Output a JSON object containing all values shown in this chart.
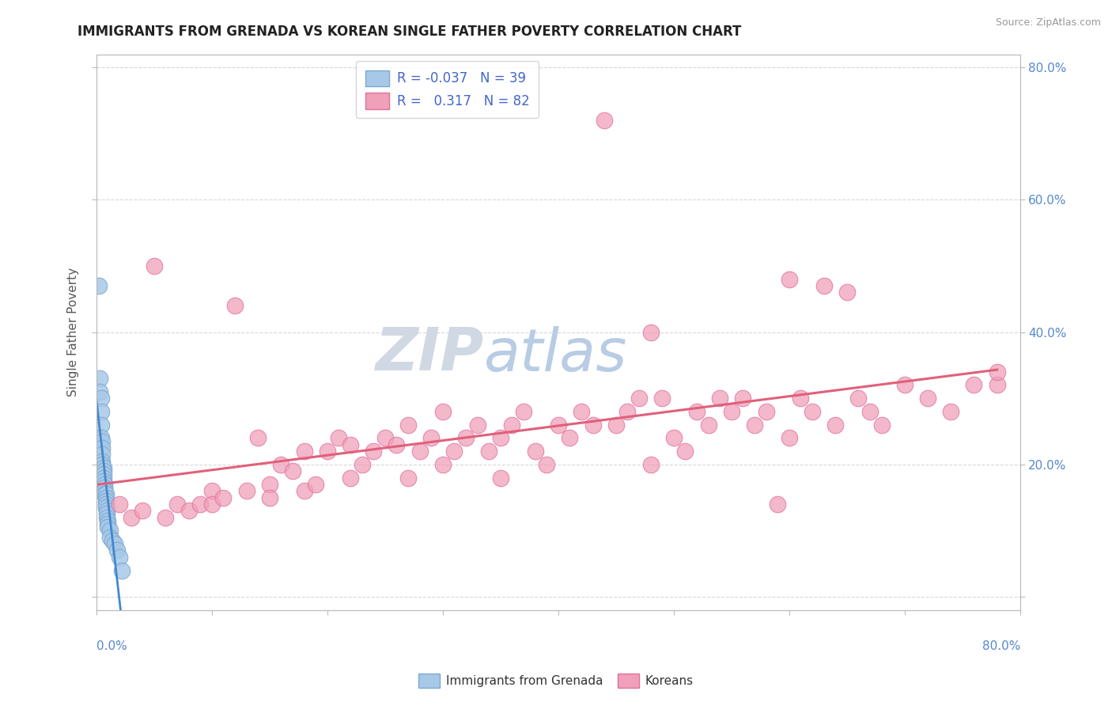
{
  "title": "IMMIGRANTS FROM GRENADA VS KOREAN SINGLE FATHER POVERTY CORRELATION CHART",
  "source": "Source: ZipAtlas.com",
  "ylabel": "Single Father Poverty",
  "right_yticks": [
    0.0,
    0.2,
    0.4,
    0.6,
    0.8
  ],
  "right_yticklabels": [
    "",
    "20.0%",
    "40.0%",
    "60.0%",
    "80.0%"
  ],
  "legend_blue_label": "Immigrants from Grenada",
  "legend_pink_label": "Koreans",
  "blue_color": "#a8c8e8",
  "pink_color": "#f0a0b8",
  "blue_edge_color": "#7aaad0",
  "pink_edge_color": "#e070a0",
  "blue_line_color": "#4488cc",
  "pink_line_color": "#e0607a",
  "title_color": "#222222",
  "source_color": "#999999",
  "axis_label_color": "#555555",
  "legend_r_color": "#4466cc",
  "background_color": "#ffffff",
  "grid_color": "#d8d8d8",
  "xlim": [
    0.0,
    0.8
  ],
  "ylim": [
    -0.02,
    0.82
  ],
  "blue_scatter_x": [
    0.002,
    0.003,
    0.003,
    0.004,
    0.004,
    0.004,
    0.004,
    0.005,
    0.005,
    0.005,
    0.005,
    0.005,
    0.006,
    0.006,
    0.006,
    0.006,
    0.006,
    0.007,
    0.007,
    0.007,
    0.007,
    0.008,
    0.008,
    0.008,
    0.008,
    0.008,
    0.009,
    0.009,
    0.009,
    0.01,
    0.01,
    0.01,
    0.012,
    0.012,
    0.014,
    0.016,
    0.018,
    0.02,
    0.022
  ],
  "blue_scatter_y": [
    0.47,
    0.33,
    0.31,
    0.3,
    0.28,
    0.26,
    0.24,
    0.235,
    0.225,
    0.215,
    0.205,
    0.2,
    0.195,
    0.19,
    0.185,
    0.18,
    0.175,
    0.17,
    0.165,
    0.16,
    0.155,
    0.155,
    0.15,
    0.145,
    0.14,
    0.135,
    0.13,
    0.125,
    0.12,
    0.115,
    0.11,
    0.105,
    0.1,
    0.09,
    0.085,
    0.08,
    0.07,
    0.06,
    0.04
  ],
  "pink_scatter_x": [
    0.02,
    0.03,
    0.04,
    0.05,
    0.06,
    0.07,
    0.08,
    0.09,
    0.1,
    0.1,
    0.11,
    0.12,
    0.13,
    0.14,
    0.15,
    0.15,
    0.16,
    0.17,
    0.18,
    0.18,
    0.19,
    0.2,
    0.21,
    0.22,
    0.22,
    0.23,
    0.24,
    0.25,
    0.26,
    0.27,
    0.27,
    0.28,
    0.29,
    0.3,
    0.3,
    0.31,
    0.32,
    0.33,
    0.34,
    0.35,
    0.35,
    0.36,
    0.37,
    0.38,
    0.39,
    0.4,
    0.41,
    0.42,
    0.43,
    0.44,
    0.45,
    0.46,
    0.47,
    0.48,
    0.48,
    0.49,
    0.5,
    0.51,
    0.52,
    0.53,
    0.54,
    0.55,
    0.56,
    0.57,
    0.58,
    0.59,
    0.6,
    0.6,
    0.61,
    0.62,
    0.63,
    0.64,
    0.65,
    0.66,
    0.67,
    0.68,
    0.7,
    0.72,
    0.74,
    0.76,
    0.78,
    0.78
  ],
  "pink_scatter_y": [
    0.14,
    0.12,
    0.13,
    0.5,
    0.12,
    0.14,
    0.13,
    0.14,
    0.16,
    0.14,
    0.15,
    0.44,
    0.16,
    0.24,
    0.17,
    0.15,
    0.2,
    0.19,
    0.22,
    0.16,
    0.17,
    0.22,
    0.24,
    0.23,
    0.18,
    0.2,
    0.22,
    0.24,
    0.23,
    0.26,
    0.18,
    0.22,
    0.24,
    0.28,
    0.2,
    0.22,
    0.24,
    0.26,
    0.22,
    0.24,
    0.18,
    0.26,
    0.28,
    0.22,
    0.2,
    0.26,
    0.24,
    0.28,
    0.26,
    0.72,
    0.26,
    0.28,
    0.3,
    0.4,
    0.2,
    0.3,
    0.24,
    0.22,
    0.28,
    0.26,
    0.3,
    0.28,
    0.3,
    0.26,
    0.28,
    0.14,
    0.48,
    0.24,
    0.3,
    0.28,
    0.47,
    0.26,
    0.46,
    0.3,
    0.28,
    0.26,
    0.32,
    0.3,
    0.28,
    0.32,
    0.32,
    0.34
  ]
}
